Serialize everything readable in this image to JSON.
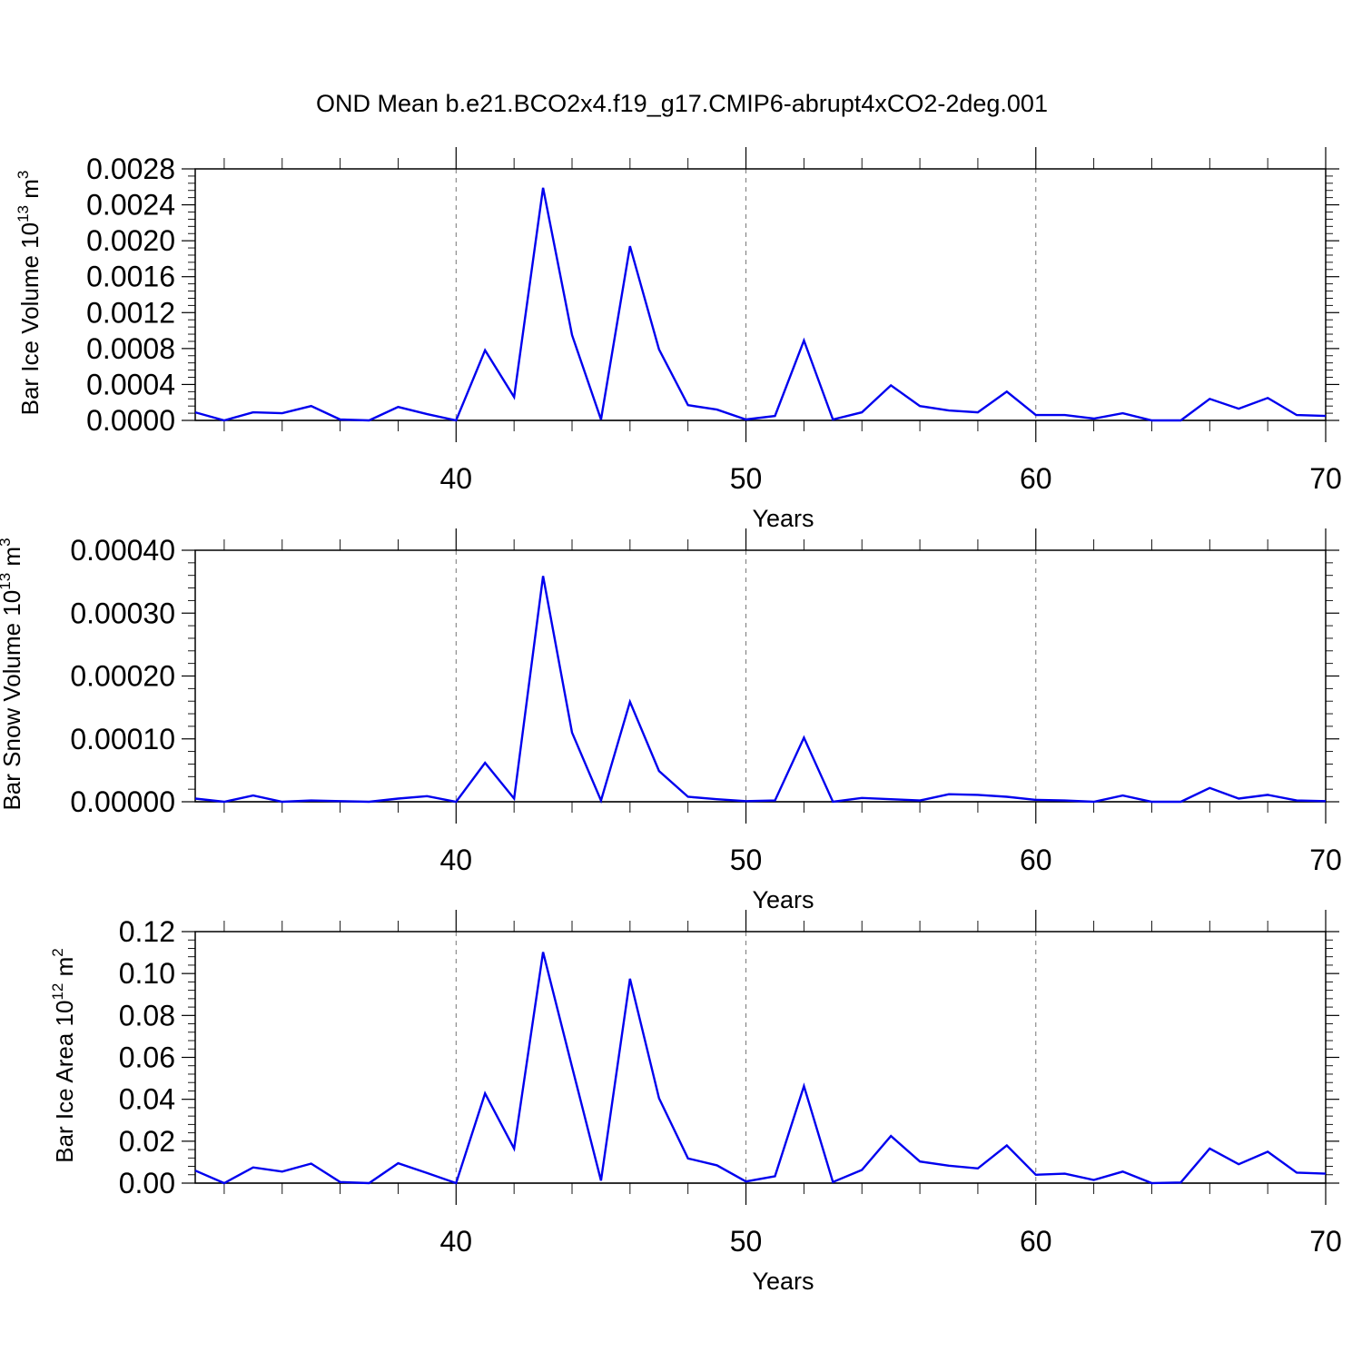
{
  "title": "OND Mean b.e21.BCO2x4.f19_g17.CMIP6-abrupt4xCO2-2deg.001",
  "line_color": "#0000ee",
  "chart_data": [
    {
      "type": "line",
      "xlabel": "Years",
      "ylabel": "Bar Ice Volume 10",
      "ylabel_sup": "13",
      "ylabel_unit": " m",
      "ylabel_unit_sup": "3",
      "xlim": [
        31,
        70
      ],
      "ylim": [
        0,
        0.0028
      ],
      "xticks": [
        40,
        50,
        60,
        70
      ],
      "xtick_labels": [
        "40",
        "50",
        "60",
        "70"
      ],
      "yticks": [
        0,
        0.0004,
        0.0008,
        0.0012,
        0.0016,
        0.002,
        0.0024,
        0.0028
      ],
      "ytick_labels": [
        "0.0000",
        "0.0004",
        "0.0008",
        "0.0012",
        "0.0016",
        "0.0020",
        "0.0024",
        "0.0028"
      ],
      "grid": "vertical dashed at major x ticks",
      "x": [
        31,
        32,
        33,
        34,
        35,
        36,
        37,
        38,
        39,
        40,
        41,
        42,
        43,
        44,
        45,
        46,
        47,
        48,
        49,
        50,
        51,
        52,
        53,
        54,
        55,
        56,
        57,
        58,
        59,
        60,
        61,
        62,
        63,
        64,
        65,
        66,
        67,
        68,
        69,
        70
      ],
      "series": [
        {
          "values": [
            9e-05,
            0.0,
            9e-05,
            8e-05,
            0.00016,
            1e-05,
            0.0,
            0.00015,
            7e-05,
            0.0,
            0.00078,
            0.00026,
            0.00259,
            0.00095,
            1e-05,
            0.00194,
            0.00079,
            0.00017,
            0.00012,
            1e-05,
            5e-05,
            0.00089,
            1e-05,
            9e-05,
            0.00039,
            0.00016,
            0.00011,
            9e-05,
            0.00032,
            6e-05,
            6e-05,
            2e-05,
            8e-05,
            0.0,
            0.0,
            0.00024,
            0.00013,
            0.00025,
            6e-05,
            5e-05
          ]
        }
      ]
    },
    {
      "type": "line",
      "xlabel": "Years",
      "ylabel": "Bar Snow Volume 10",
      "ylabel_sup": "13",
      "ylabel_unit": " m",
      "ylabel_unit_sup": "3",
      "xlim": [
        31,
        70
      ],
      "ylim": [
        0,
        0.0004
      ],
      "xticks": [
        40,
        50,
        60,
        70
      ],
      "xtick_labels": [
        "40",
        "50",
        "60",
        "70"
      ],
      "yticks": [
        0,
        0.0001,
        0.0002,
        0.0003,
        0.0004
      ],
      "ytick_labels": [
        "0.00000",
        "0.00010",
        "0.00020",
        "0.00030",
        "0.00040"
      ],
      "grid": "vertical dashed at major x ticks",
      "x": [
        31,
        32,
        33,
        34,
        35,
        36,
        37,
        38,
        39,
        40,
        41,
        42,
        43,
        44,
        45,
        46,
        47,
        48,
        49,
        50,
        51,
        52,
        53,
        54,
        55,
        56,
        57,
        58,
        59,
        60,
        61,
        62,
        63,
        64,
        65,
        66,
        67,
        68,
        69,
        70
      ],
      "series": [
        {
          "values": [
            5e-06,
            0.0,
            1e-05,
            0.0,
            2e-06,
            1e-06,
            0.0,
            5e-06,
            9e-06,
            0.0,
            6.2e-05,
            5e-06,
            0.000359,
            0.00011,
            2e-06,
            0.000159,
            4.9e-05,
            8e-06,
            4e-06,
            1e-06,
            2e-06,
            0.000102,
            0.0,
            6e-06,
            4e-06,
            2e-06,
            1.2e-05,
            1.1e-05,
            8e-06,
            3e-06,
            2e-06,
            0.0,
            1e-05,
            0.0,
            0.0,
            2.2e-05,
            5e-06,
            1.1e-05,
            2e-06,
            1e-06
          ]
        }
      ]
    },
    {
      "type": "line",
      "xlabel": "Years",
      "ylabel": "Bar Ice Area 10",
      "ylabel_sup": "12",
      "ylabel_unit": " m",
      "ylabel_unit_sup": "2",
      "xlim": [
        31,
        70
      ],
      "ylim": [
        0,
        0.12
      ],
      "xticks": [
        40,
        50,
        60,
        70
      ],
      "xtick_labels": [
        "40",
        "50",
        "60",
        "70"
      ],
      "yticks": [
        0,
        0.02,
        0.04,
        0.06,
        0.08,
        0.1,
        0.12
      ],
      "ytick_labels": [
        "0.00",
        "0.02",
        "0.04",
        "0.06",
        "0.08",
        "0.10",
        "0.12"
      ],
      "grid": "vertical dashed at major x ticks",
      "x": [
        31,
        32,
        33,
        34,
        35,
        36,
        37,
        38,
        39,
        40,
        41,
        42,
        43,
        44,
        45,
        46,
        47,
        48,
        49,
        50,
        51,
        52,
        53,
        54,
        55,
        56,
        57,
        58,
        59,
        60,
        61,
        62,
        63,
        64,
        65,
        66,
        67,
        68,
        69,
        70
      ],
      "series": [
        {
          "values": [
            0.006,
            0.0,
            0.0075,
            0.0055,
            0.0093,
            0.0005,
            0.0,
            0.0095,
            0.0048,
            0.0,
            0.0428,
            0.0165,
            0.1102,
            0.0555,
            0.0012,
            0.0975,
            0.0405,
            0.0118,
            0.0085,
            0.0008,
            0.0033,
            0.0463,
            0.0005,
            0.0063,
            0.0225,
            0.0103,
            0.0083,
            0.007,
            0.018,
            0.004,
            0.0045,
            0.0015,
            0.0055,
            0.0,
            0.0003,
            0.0165,
            0.009,
            0.015,
            0.005,
            0.0045
          ]
        }
      ]
    }
  ]
}
